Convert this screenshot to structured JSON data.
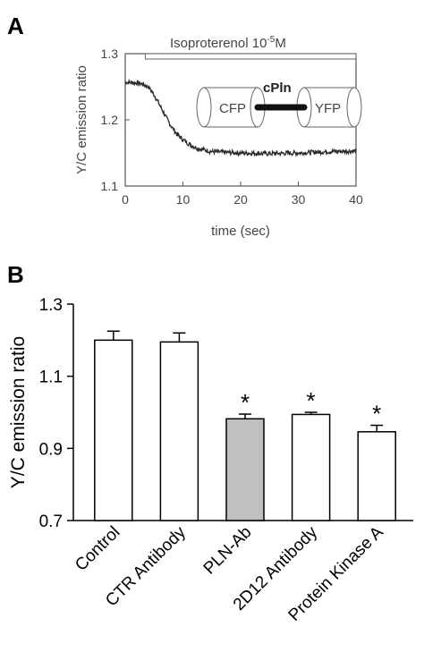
{
  "panels": {
    "a_letter": "A",
    "b_letter": "B"
  },
  "chart_data": [
    {
      "id": "A",
      "type": "line",
      "xlabel": "time (sec)",
      "ylabel": "Y/C emission ratio",
      "xlim": [
        0,
        40
      ],
      "ylim": [
        1.1,
        1.3
      ],
      "xticks": [
        0,
        10,
        20,
        30,
        40
      ],
      "yticks": [
        1.1,
        1.2,
        1.3
      ],
      "annotation": {
        "label": "Isoproterenol 10",
        "superscript": "-5",
        "suffix": "M",
        "x_start": 3.5,
        "x_end": 40
      },
      "inset": {
        "title": "cPln",
        "left": "CFP",
        "right": "YFP"
      },
      "trace": {
        "x": [
          0,
          2,
          3,
          4,
          5,
          6,
          7,
          8,
          9,
          10,
          11,
          12,
          13,
          14,
          15,
          17,
          20,
          25,
          30,
          35,
          40
        ],
        "y": [
          1.257,
          1.256,
          1.254,
          1.25,
          1.238,
          1.222,
          1.205,
          1.19,
          1.178,
          1.17,
          1.164,
          1.159,
          1.156,
          1.154,
          1.152,
          1.151,
          1.15,
          1.149,
          1.15,
          1.152,
          1.153
        ]
      },
      "colors": {
        "trace": "#2a2a2a",
        "axis": "#555555"
      }
    },
    {
      "id": "B",
      "type": "bar",
      "ylabel": "Y/C emission ratio",
      "ylim": [
        0.7,
        1.3
      ],
      "yticks": [
        "0.7",
        "0.9",
        "1.1",
        "1.3"
      ],
      "categories": [
        "Control",
        "CTR Antibody",
        "PLN-Ab",
        "2D12 Antibody",
        "Protein Kinase A"
      ],
      "values": [
        1.2,
        1.195,
        0.982,
        0.994,
        0.946
      ],
      "errors": [
        0.025,
        0.025,
        0.013,
        0.006,
        0.018
      ],
      "significant": [
        false,
        false,
        true,
        true,
        true
      ],
      "significance_marker": "*",
      "bar_colors": [
        "#ffffff",
        "#ffffff",
        "#c0c0c0",
        "#ffffff",
        "#ffffff"
      ]
    }
  ]
}
